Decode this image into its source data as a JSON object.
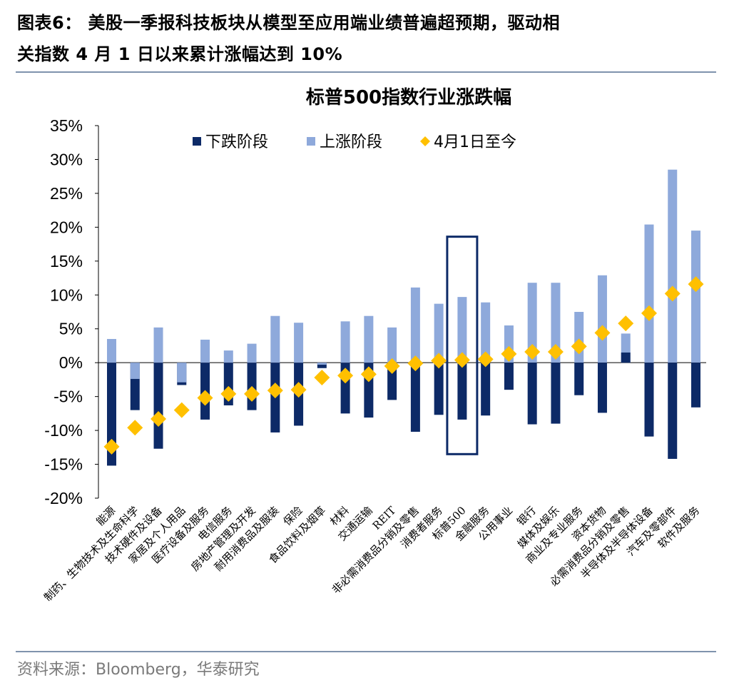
{
  "figure": {
    "title_line1": "图表6： 美股一季报科技板块从模型至应用端业绩普遍超预期，驱动相",
    "title_line2": "关指数 4 月 1 日以来累计涨幅达到 10%",
    "source": "资料来源：Bloomberg，华泰研究"
  },
  "chart_data": {
    "type": "bar",
    "title": "标普500指数行业涨跌幅",
    "y_ticks": [
      "35%",
      "30%",
      "25%",
      "20%",
      "15%",
      "10%",
      "5%",
      "0%",
      "-5%",
      "-10%",
      "-15%",
      "-20%"
    ],
    "ylim": [
      -20,
      35
    ],
    "legend_position": "top",
    "colors": {
      "down": "#0d2a67",
      "up": "#8ea9db",
      "marker": "#ffc000",
      "highlight_box": "#0d2a67"
    },
    "highlight_category": "标普500",
    "categories": [
      "能源",
      "制药、生物技术及生命科学",
      "技术硬件及设备",
      "家居及个人用品",
      "医疗设备及服务",
      "电信服务",
      "房地产管理及开发",
      "耐用消费品及服装",
      "保险",
      "食品饮料及烟草",
      "材料",
      "交通运输",
      "REIT",
      "非必需消费品分销及零售",
      "消费者服务",
      "标普500",
      "金融服务",
      "公用事业",
      "银行",
      "媒体及娱乐",
      "商业及专业服务",
      "资本货物",
      "必需消费品分销及零售",
      "半导体及半导体设备",
      "汽车及零部件",
      "软件及服务"
    ],
    "series": [
      {
        "name": "下跌阶段",
        "kind": "bar",
        "values": [
          -15.2,
          -7.0,
          -12.7,
          -3.3,
          -8.4,
          -6.3,
          -7.0,
          -10.3,
          -9.3,
          -0.8,
          -7.5,
          -8.1,
          -5.5,
          -10.2,
          -7.7,
          -8.4,
          -7.8,
          -4.0,
          -9.1,
          -9.0,
          -4.8,
          -7.4,
          1.5,
          -10.9,
          -14.2,
          -6.6
        ]
      },
      {
        "name": "上涨阶段",
        "kind": "bar",
        "values": [
          3.5,
          -2.4,
          5.2,
          -2.9,
          3.4,
          1.8,
          2.8,
          6.9,
          5.9,
          -0.3,
          6.1,
          6.9,
          5.2,
          11.1,
          8.7,
          9.7,
          8.9,
          5.5,
          11.8,
          11.8,
          7.5,
          12.9,
          4.3,
          20.4,
          28.5,
          19.5
        ]
      },
      {
        "name": "4月1日至今",
        "kind": "marker",
        "values": [
          -12.4,
          -9.6,
          -8.3,
          -7.0,
          -5.2,
          -4.6,
          -4.6,
          -4.1,
          -4.0,
          -2.2,
          -1.9,
          -1.7,
          -0.5,
          -0.1,
          0.3,
          0.4,
          0.5,
          1.3,
          1.6,
          1.6,
          2.4,
          4.4,
          5.8,
          7.3,
          10.2,
          11.6
        ]
      }
    ]
  }
}
